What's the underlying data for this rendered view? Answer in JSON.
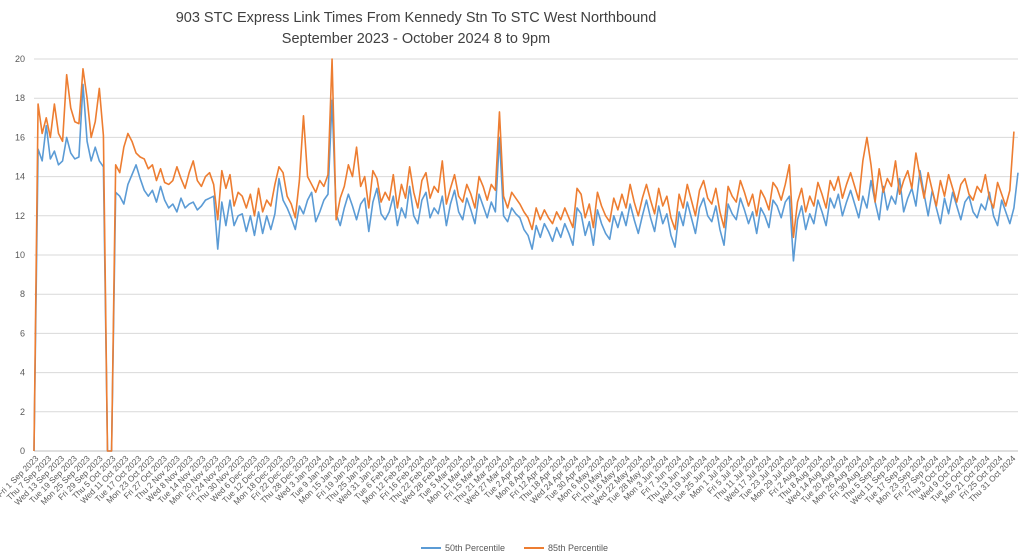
{
  "chart_data": {
    "type": "line",
    "title": "903 STC Express Link Times From Kennedy Stn To STC West Northbound",
    "subtitle": "September 2023 - October 2024 8 to 9pm",
    "xlabel": "",
    "ylabel": "",
    "ylim": [
      0,
      20
    ],
    "yticks": [
      0,
      2,
      4,
      6,
      8,
      10,
      12,
      14,
      16,
      18,
      20
    ],
    "grid": "horizontal",
    "legend_position": "bottom",
    "x_tick_labels": [
      "Fri 1 Sep 2023",
      "Thu 7 Sep 2023",
      "Wed 13 Sep 2023",
      "Tue 19 Sep 2023",
      "Mon 25 Sep 2023",
      "Fri 29 Sep 2023",
      "Thu 5 Oct 2023",
      "Wed 11 Oct 2023",
      "Tue 17 Oct 2023",
      "Mon 23 Oct 2023",
      "Fri 27 Oct 2023",
      "Thu 2 Nov 2023",
      "Wed 8 Nov 2023",
      "Tue 14 Nov 2023",
      "Mon 20 Nov 2023",
      "Fri 24 Nov 2023",
      "Thu 30 Nov 2023",
      "Wed 6 Dec 2023",
      "Tue 12 Dec 2023",
      "Mon 18 Dec 2023",
      "Fri 22 Dec 2023",
      "Thu 28 Dec 2023",
      "Wed 3 Jan 2024",
      "Tue 9 Jan 2024",
      "Mon 15 Jan 2024",
      "Fri 19 Jan 2024",
      "Thu 25 Jan 2024",
      "Wed 31 Jan 2024",
      "Tue 6 Feb 2024",
      "Mon 12 Feb 2024",
      "Fri 16 Feb 2024",
      "Thu 22 Feb 2024",
      "Wed 28 Feb 2024",
      "Tue 5 Mar 2024",
      "Mon 11 Mar 2024",
      "Fri 15 Mar 2024",
      "Thu 21 Mar 2024",
      "Wed 27 Mar 2024",
      "Tue 2 Apr 2024",
      "Mon 8 Apr 2024",
      "Fri 12 Apr 2024",
      "Thu 18 Apr 2024",
      "Wed 24 Apr 2024",
      "Tue 30 Apr 2024",
      "Mon 6 May 2024",
      "Fri 10 May 2024",
      "Thu 16 May 2024",
      "Wed 22 May 2024",
      "Tue 28 May 2024",
      "Mon 3 Jun 2024",
      "Fri 7 Jun 2024",
      "Thu 13 Jun 2024",
      "Wed 19 Jun 2024",
      "Tue 25 Jun 2024",
      "Mon 1 Jul 2024",
      "Fri 5 Jul 2024",
      "Thu 11 Jul 2024",
      "Wed 17 Jul 2024",
      "Tue 23 Jul 2024",
      "Mon 29 Jul 2024",
      "Fri 2 Aug 2024",
      "Thu 8 Aug 2024",
      "Wed 14 Aug 2024",
      "Tue 20 Aug 2024",
      "Mon 26 Aug 2024",
      "Fri 30 Aug 2024",
      "Thu 5 Sep 2024",
      "Wed 11 Sep 2024",
      "Tue 17 Sep 2024",
      "Mon 23 Sep 2024",
      "Fri 27 Sep 2024",
      "Thu 3 Oct 2024",
      "Wed 9 Oct 2024",
      "Tue 15 Oct 2024",
      "Mon 21 Oct 2024",
      "Fri 25 Oct 2024",
      "Thu 31 Oct 2024"
    ],
    "series": [
      {
        "name": "50th Percentile",
        "color": "#5B9BD5",
        "values": [
          0,
          15.4,
          14.8,
          16.6,
          14.9,
          15.3,
          14.6,
          14.8,
          16.0,
          15.2,
          14.9,
          15.0,
          18.7,
          15.8,
          14.8,
          15.5,
          14.8,
          14.5,
          0,
          0,
          13.2,
          13.0,
          12.6,
          13.6,
          14.1,
          14.6,
          13.9,
          13.3,
          13.0,
          13.3,
          12.7,
          13.5,
          12.8,
          12.4,
          12.6,
          12.2,
          12.9,
          12.4,
          12.6,
          12.7,
          12.3,
          12.5,
          12.8,
          12.9,
          13.0,
          10.3,
          12.7,
          11.5,
          12.8,
          11.5,
          12.0,
          12.1,
          11.2,
          12.0,
          11.0,
          12.2,
          11.1,
          12.0,
          11.3,
          12.1,
          13.9,
          12.8,
          12.4,
          11.9,
          11.3,
          12.5,
          12.1,
          12.8,
          13.2,
          11.7,
          12.2,
          12.8,
          13.1,
          17.9,
          12.1,
          11.5,
          12.4,
          13.1,
          12.5,
          11.8,
          12.6,
          12.9,
          11.2,
          12.7,
          13.4,
          12.1,
          11.8,
          12.2,
          13.0,
          11.5,
          12.4,
          11.9,
          13.5,
          12.0,
          11.6,
          12.8,
          13.2,
          11.9,
          12.4,
          12.1,
          13.0,
          11.5,
          12.6,
          13.3,
          12.2,
          11.8,
          12.9,
          12.3,
          11.6,
          13.1,
          12.5,
          11.9,
          12.7,
          12.2,
          16.0,
          12.0,
          11.7,
          12.4,
          12.1,
          11.9,
          11.3,
          11.0,
          10.3,
          11.5,
          10.9,
          11.6,
          11.2,
          10.7,
          11.4,
          10.9,
          11.6,
          11.1,
          10.5,
          12.4,
          12.1,
          11.0,
          11.7,
          10.5,
          12.3,
          11.6,
          11.1,
          10.8,
          12.0,
          11.4,
          12.2,
          11.5,
          12.6,
          11.8,
          11.1,
          12.0,
          12.8,
          11.9,
          11.2,
          12.5,
          11.6,
          12.1,
          11.0,
          10.4,
          12.2,
          11.5,
          12.7,
          11.9,
          11.1,
          12.4,
          12.9,
          12.0,
          11.7,
          12.5,
          11.3,
          10.5,
          12.6,
          12.1,
          11.8,
          12.9,
          12.3,
          11.6,
          12.2,
          11.1,
          12.4,
          12.0,
          11.4,
          12.8,
          12.5,
          11.9,
          12.7,
          13.0,
          9.7,
          11.8,
          12.5,
          11.3,
          12.1,
          11.6,
          12.8,
          12.2,
          11.5,
          12.9,
          12.4,
          13.1,
          12.0,
          12.7,
          13.3,
          12.6,
          11.9,
          13.0,
          12.4,
          13.8,
          12.7,
          11.8,
          13.5,
          12.3,
          13.0,
          12.6,
          13.9,
          12.2,
          12.9,
          13.4,
          12.5,
          14.3,
          13.1,
          12.0,
          13.3,
          12.4,
          11.6,
          12.9,
          12.1,
          13.2,
          12.5,
          11.8,
          12.7,
          13.0,
          12.2,
          11.9,
          12.6,
          12.3,
          13.2,
          12.0,
          11.5,
          12.8,
          12.2,
          11.6,
          12.4,
          14.2
        ]
      },
      {
        "name": "85th Percentile",
        "color": "#ED7D31",
        "values": [
          0,
          17.7,
          16.2,
          17.0,
          16.0,
          17.7,
          16.2,
          15.8,
          19.2,
          17.5,
          16.8,
          16.7,
          19.5,
          18.0,
          16.0,
          16.8,
          18.5,
          16.1,
          0,
          0,
          14.6,
          14.2,
          15.5,
          16.2,
          15.8,
          15.2,
          15.0,
          14.9,
          14.4,
          14.6,
          13.8,
          14.4,
          13.7,
          13.6,
          13.8,
          14.5,
          13.9,
          13.4,
          14.2,
          14.8,
          13.8,
          13.5,
          14.0,
          14.2,
          13.6,
          11.8,
          14.3,
          13.4,
          14.1,
          12.5,
          13.2,
          13.0,
          12.4,
          13.1,
          12.0,
          13.4,
          12.2,
          12.8,
          12.5,
          13.6,
          14.5,
          14.2,
          13.0,
          12.6,
          11.9,
          13.8,
          17.1,
          14.0,
          13.6,
          13.2,
          13.8,
          13.5,
          14.1,
          20.0,
          11.8,
          12.9,
          13.5,
          14.6,
          14.0,
          15.5,
          13.5,
          14.0,
          12.4,
          14.3,
          13.9,
          12.7,
          13.2,
          12.8,
          14.1,
          12.4,
          13.6,
          12.9,
          14.5,
          13.2,
          12.4,
          13.8,
          14.2,
          12.9,
          13.5,
          13.2,
          14.8,
          12.6,
          13.4,
          14.1,
          13.0,
          12.7,
          13.6,
          13.1,
          12.4,
          14.0,
          13.5,
          12.8,
          13.6,
          13.3,
          17.3,
          13.0,
          12.4,
          13.2,
          12.9,
          12.6,
          12.2,
          11.9,
          11.3,
          12.4,
          11.8,
          12.3,
          11.9,
          11.6,
          12.2,
          11.8,
          12.4,
          11.9,
          11.4,
          13.4,
          13.1,
          11.9,
          12.6,
          11.4,
          13.2,
          12.5,
          12.0,
          11.7,
          12.9,
          12.3,
          13.1,
          12.4,
          13.6,
          12.7,
          12.0,
          12.9,
          13.6,
          12.8,
          12.1,
          13.4,
          12.5,
          13.0,
          11.9,
          11.3,
          13.1,
          12.4,
          13.6,
          12.8,
          12.0,
          13.3,
          13.8,
          12.9,
          12.6,
          13.4,
          12.2,
          11.4,
          13.5,
          13.0,
          12.7,
          13.8,
          13.2,
          12.5,
          13.1,
          12.0,
          13.3,
          12.9,
          12.3,
          13.7,
          13.4,
          12.8,
          13.6,
          14.6,
          10.9,
          12.7,
          13.4,
          12.2,
          13.0,
          12.5,
          13.7,
          13.1,
          12.4,
          13.8,
          13.3,
          14.0,
          12.9,
          13.6,
          14.2,
          13.5,
          12.8,
          14.8,
          16.0,
          14.6,
          12.7,
          14.4,
          13.2,
          13.9,
          13.5,
          14.8,
          13.1,
          13.8,
          14.3,
          13.4,
          15.2,
          14.0,
          12.9,
          14.2,
          13.3,
          12.5,
          13.8,
          13.0,
          14.1,
          13.4,
          12.7,
          13.6,
          13.9,
          13.1,
          12.8,
          13.5,
          13.2,
          14.1,
          12.9,
          12.4,
          13.7,
          13.1,
          12.5,
          13.3,
          16.3
        ]
      }
    ]
  }
}
